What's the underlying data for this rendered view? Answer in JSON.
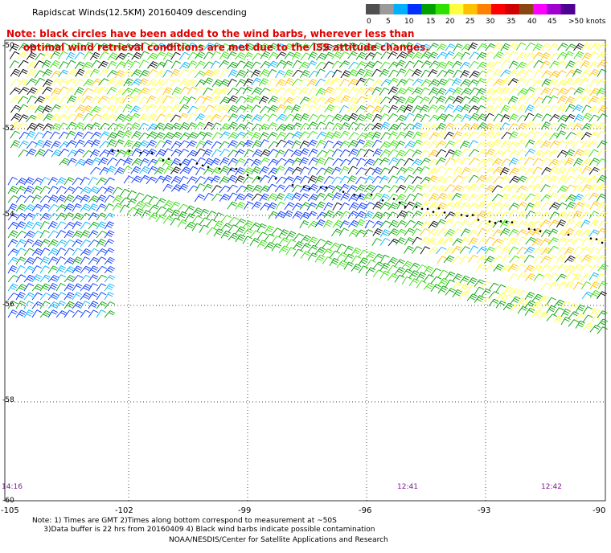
{
  "title": "Rapidscat Winds(12.5KM) 20160409 descending",
  "note_lines": [
    "Note: black circles have been added to the wind barbs, wherever less than",
    "     optimal wind retrieval conditions are met due to the ISS attitude changes."
  ],
  "legend": {
    "labels": [
      "0",
      "5",
      "10",
      "15",
      "20",
      "25",
      "30",
      "35",
      "40",
      "45",
      ">50 knots"
    ],
    "colors": [
      "#505050",
      "#9a9a9a",
      "#00b0ff",
      "#0030ff",
      "#00a000",
      "#30e000",
      "#ffff40",
      "#ffc000",
      "#ff8000",
      "#ff0000",
      "#d00000",
      "#8b4513",
      "#ff00ff",
      "#a000d0",
      "#500090"
    ]
  },
  "map": {
    "lat_labels": [
      "-52",
      "-54",
      "-56",
      "-58",
      "-60"
    ],
    "lat_labels_extra": [
      "-50"
    ],
    "lon_labels": [
      "-105",
      "-102",
      "-99",
      "-96",
      "-93",
      "-90"
    ],
    "time_labels": [
      "14:16",
      "12:41",
      "12:42"
    ]
  },
  "footnote_lines": [
    "Note: 1) Times are GMT 2)Times along bottom correspond to measurement at ~50S",
    "     3)Data buffer is 22 hrs from 20160409 4) Black wind barbs indicate possible contamination"
  ],
  "credit": "NOAA/NESDIS/Center for Satellite Applications and Research"
}
